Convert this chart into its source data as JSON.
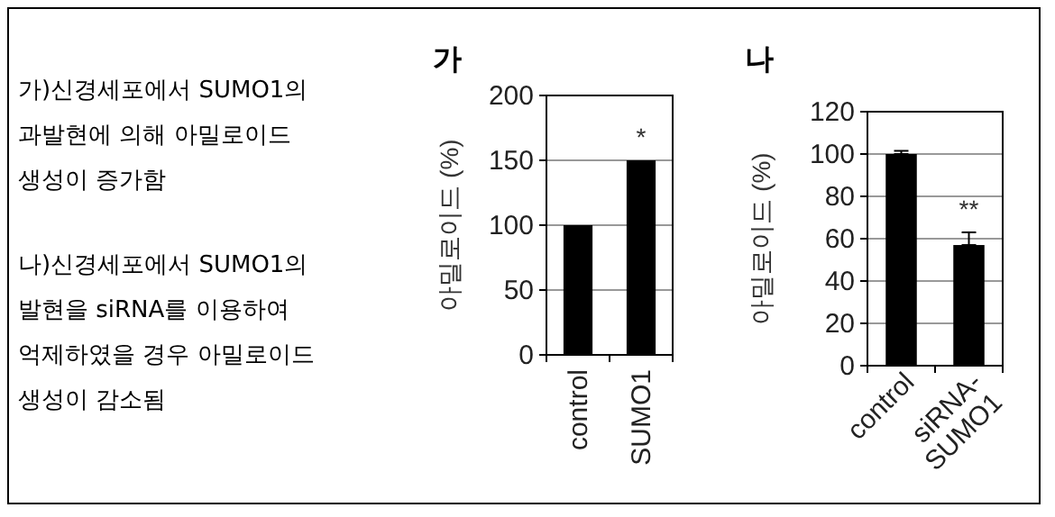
{
  "chart_data": [
    {
      "type": "other",
      "annotations": [
        "가)신경세포에서 SUMO1의 과발현에 의해 아밀로이드 생성이 증가함",
        "나)신경세포에서 SUMO1의 발현을 siRNA를 이용하여 억제하였을 경우 아밀로이드 생성이 감소됨"
      ]
    },
    {
      "type": "bar",
      "title": "가",
      "ylabel": "아밀로이드 (%)",
      "categories": [
        "control",
        "SUMO1"
      ],
      "values": [
        100,
        150
      ],
      "color": "#000000",
      "ylim": [
        0,
        200
      ],
      "yticks": [
        0,
        50,
        100,
        150,
        200
      ],
      "grid": "y",
      "annotations": [
        "*"
      ]
    },
    {
      "type": "bar",
      "title": "나",
      "ylabel": "아밀로이드 (%)",
      "categories": [
        "control",
        "siRNA-SUMO1"
      ],
      "values": [
        100,
        57
      ],
      "errors": [
        [
          100,
          101.5
        ],
        [
          57,
          63
        ]
      ],
      "color": "#000000",
      "ylim": [
        0,
        120
      ],
      "yticks": [
        0,
        20,
        40,
        60,
        80,
        100,
        120
      ],
      "grid": "y",
      "annotations": [
        "**"
      ]
    }
  ]
}
